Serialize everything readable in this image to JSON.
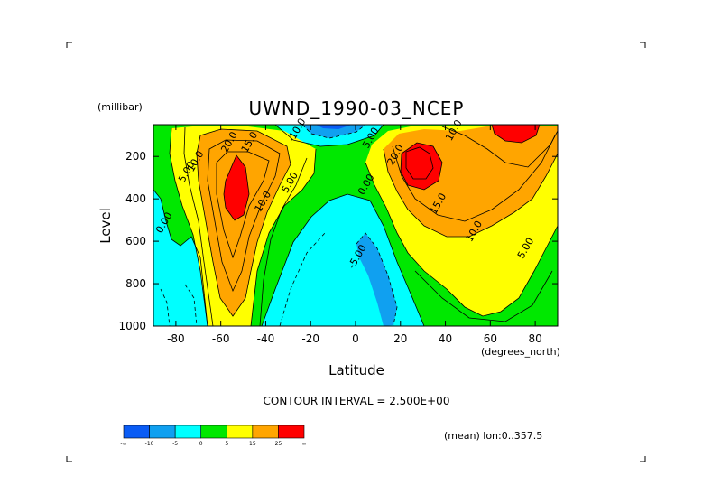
{
  "chart_data": {
    "type": "contour",
    "title": "UWND_1990-03_NCEP",
    "xlabel": "Latitude",
    "x_units": "(degrees_north)",
    "ylabel": "Level",
    "y_units": "(millibar)",
    "xlim": [
      -90,
      90
    ],
    "ylim": [
      1000,
      50
    ],
    "y_reversed": true,
    "x_ticks": [
      -80,
      -60,
      -40,
      -20,
      0,
      20,
      40,
      60,
      80
    ],
    "x_tick_labels": [
      "-80",
      "-60",
      "-40",
      "-20",
      "0",
      "20",
      "40",
      "60",
      "80"
    ],
    "y_ticks": [
      200,
      400,
      600,
      800,
      1000
    ],
    "y_tick_labels": [
      "200",
      "400",
      "600",
      "800",
      "1000"
    ],
    "contour_interval_label": "CONTOUR INTERVAL = 2.500E+00",
    "mean_label": "(mean) lon:0..357.5",
    "colorbar": {
      "colors": [
        "#0a5cf5",
        "#10a0f0",
        "#00ffff",
        "#00e800",
        "#ffff00",
        "#ffa500",
        "#ff0000"
      ],
      "labels": [
        "-∞",
        "-10",
        "-5",
        "0",
        "5",
        "15",
        "25",
        "∞"
      ]
    },
    "jets": [
      {
        "lat": -54,
        "level": 290,
        "peak": "> 25"
      },
      {
        "lat": 28,
        "level": 200,
        "peak": "> 25"
      },
      {
        "lat": 72,
        "level": 70,
        "peak": "> 25"
      }
    ],
    "contour_labels": [
      {
        "text": "20.0",
        "lat": -55,
        "level": 140
      },
      {
        "text": "15.0",
        "lat": -46,
        "level": 140
      },
      {
        "text": "10.0",
        "lat": -70,
        "level": 230
      },
      {
        "text": "5.00",
        "lat": -74,
        "level": 280
      },
      {
        "text": "0.00",
        "lat": -84,
        "level": 520
      },
      {
        "text": "10.0",
        "lat": -40,
        "level": 420
      },
      {
        "text": "5.00",
        "lat": -28,
        "level": 330
      },
      {
        "text": "-10.0",
        "lat": -25,
        "level": 60
      },
      {
        "text": "5.00",
        "lat": 8,
        "level": 120
      },
      {
        "text": "0.00",
        "lat": 6,
        "level": 340
      },
      {
        "text": "-5.00",
        "lat": 2,
        "level": 680
      },
      {
        "text": "20.0",
        "lat": 19,
        "level": 200
      },
      {
        "text": "10.0",
        "lat": 45,
        "level": 20
      },
      {
        "text": "15.0",
        "lat": 38,
        "level": 430
      },
      {
        "text": "10.0",
        "lat": 54,
        "level": 560
      },
      {
        "text": "5.00",
        "lat": 77,
        "level": 640
      }
    ]
  }
}
